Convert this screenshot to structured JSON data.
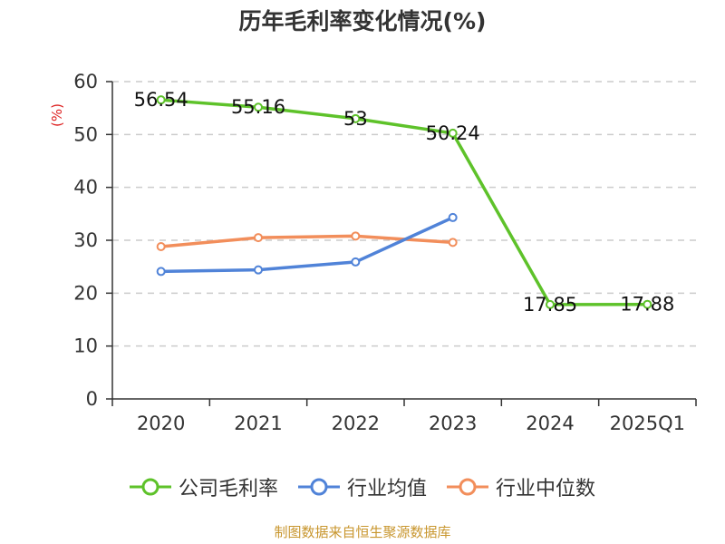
{
  "chart_data": {
    "type": "line",
    "title": "历年毛利率变化情况(%)",
    "ylabel": "(%)",
    "xlabel": "",
    "categories": [
      "2020",
      "2021",
      "2022",
      "2023",
      "2024",
      "2025Q1"
    ],
    "ylim": [
      0,
      60
    ],
    "yticks": [
      0,
      10,
      20,
      30,
      40,
      50,
      60
    ],
    "grid": true,
    "legend_position": "bottom",
    "series": [
      {
        "name": "公司毛利率",
        "color": "#5ec22a",
        "values": [
          56.54,
          55.16,
          53,
          50.24,
          17.85,
          17.88
        ],
        "labels": [
          "56.54",
          "55.16",
          "53",
          "50.24",
          "17.85",
          "17.88"
        ]
      },
      {
        "name": "行业均值",
        "color": "#5083d8",
        "values": [
          24.1,
          24.4,
          25.9,
          34.3,
          null,
          null
        ]
      },
      {
        "name": "行业中位数",
        "color": "#f28e5b",
        "values": [
          28.8,
          30.5,
          30.8,
          29.6,
          null,
          null
        ]
      }
    ]
  },
  "source": "制图数据来自恒生聚源数据库"
}
